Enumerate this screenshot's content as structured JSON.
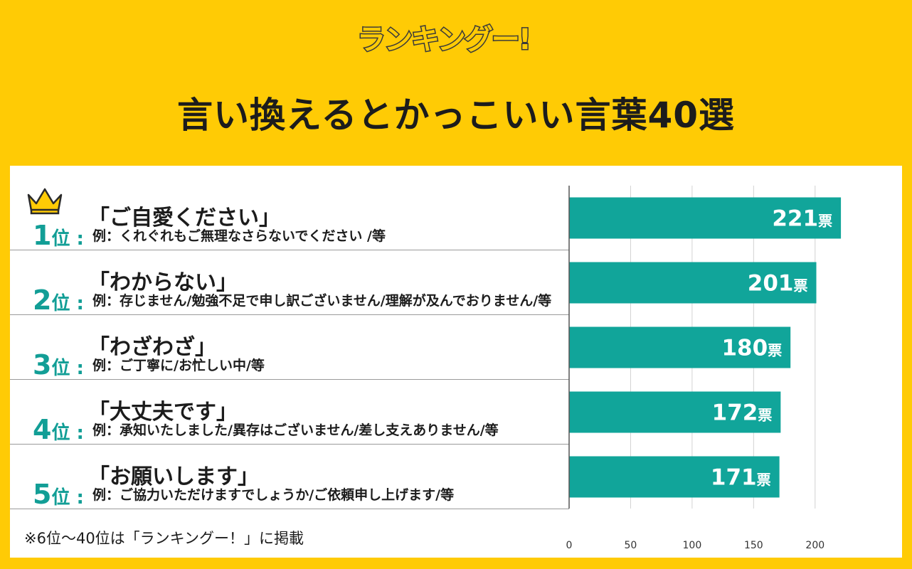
{
  "logo": {
    "text": "ランキングー!"
  },
  "title": "言い換えるとかっこいい言葉40選",
  "footnote": "※6位〜40位は「ランキングー！」に掲載",
  "colors": {
    "background": "#FFCB05",
    "bar": "#11A59A",
    "rank": "#129E96",
    "panel": "#FFFFFF"
  },
  "icons": {
    "crown": "crown-icon"
  },
  "rankings": [
    {
      "rank": "1",
      "suffix": "位 :",
      "label": "「ご自愛ください」",
      "example": "例：くれぐれもご無理なさらないでください /等"
    },
    {
      "rank": "2",
      "suffix": "位 :",
      "label": "「わからない」",
      "example": "例：存じません/勉強不足で申し訳ございません/理解が及んでおりません/等"
    },
    {
      "rank": "3",
      "suffix": "位 :",
      "label": "「わざわざ」",
      "example": "例：ご丁寧に/お忙しい中/等"
    },
    {
      "rank": "4",
      "suffix": "位 :",
      "label": "「大丈夫です」",
      "example": "例：承知いたしました/異存はございません/差し支えありません/等"
    },
    {
      "rank": "5",
      "suffix": "位 :",
      "label": "「お願いします」",
      "example": "例：ご協力いただけますでしょうか/ご依頼申し上げます/等"
    }
  ],
  "chart_data": {
    "type": "bar",
    "orientation": "horizontal",
    "categories": [
      "ご自愛ください",
      "わからない",
      "わざわざ",
      "大丈夫です",
      "お願いします"
    ],
    "values": [
      221,
      201,
      180,
      172,
      171
    ],
    "value_unit": "票",
    "xlim": [
      0,
      225
    ],
    "xticks": [
      0,
      50,
      100,
      150,
      200
    ],
    "grid": true
  }
}
